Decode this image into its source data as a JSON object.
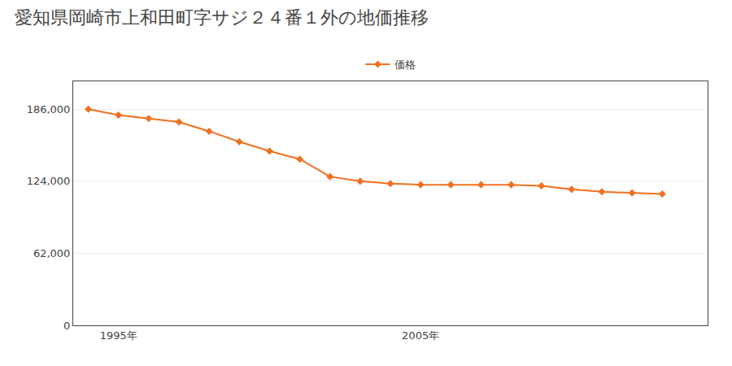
{
  "chart_data": {
    "type": "line",
    "title": "愛知県岡崎市上和田町字サジ２４番１外の地価推移",
    "x": [
      1994,
      1995,
      1996,
      1997,
      1998,
      1999,
      2000,
      2001,
      2002,
      2003,
      2004,
      2005,
      2006,
      2007,
      2008,
      2009,
      2010,
      2011,
      2012,
      2013
    ],
    "series": [
      {
        "name": "価格",
        "color": "#f07020",
        "marker": "diamond",
        "values": [
          186000,
          181000,
          178000,
          175000,
          167000,
          158000,
          150000,
          143000,
          128000,
          124000,
          122000,
          121000,
          121000,
          121000,
          121000,
          120000,
          117000,
          115000,
          114000,
          113000
        ]
      }
    ],
    "xlim": [
      1993.5,
      2014.5
    ],
    "xticks": [
      {
        "value": 1995,
        "label": "1995年"
      },
      {
        "value": 2005,
        "label": "2005年"
      }
    ],
    "ylim": [
      0,
      210000
    ],
    "yticks": [
      0,
      {
        "value": 62000,
        "label": "62,000"
      },
      {
        "value": 124000,
        "label": "124,000"
      },
      {
        "value": 186000,
        "label": "186,000"
      }
    ],
    "grid": "y",
    "legend": "top"
  }
}
